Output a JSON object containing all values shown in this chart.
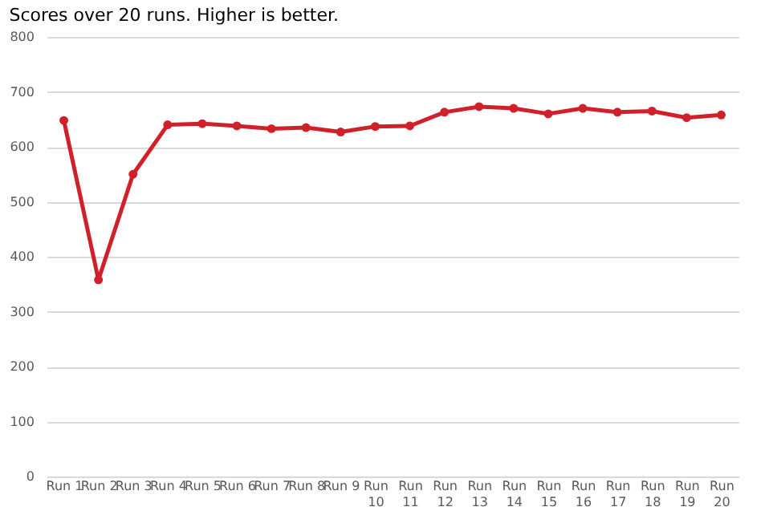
{
  "chart_data": {
    "type": "line",
    "subtitle": "Scores over 20 runs. Higher is better.",
    "categories": [
      "Run 1",
      "Run 2",
      "Run 3",
      "Run 4",
      "Run 5",
      "Run 6",
      "Run 7",
      "Run 8",
      "Run 9",
      "Run 10",
      "Run 11",
      "Run 12",
      "Run 13",
      "Run 14",
      "Run 15",
      "Run 16",
      "Run 17",
      "Run 18",
      "Run 19",
      "Run 20"
    ],
    "series": [
      {
        "color": "#d0202a",
        "values": [
          648,
          358,
          550,
          640,
          642,
          638,
          633,
          635,
          627,
          637,
          638,
          663,
          673,
          670,
          660,
          670,
          663,
          665,
          653,
          658
        ]
      }
    ],
    "ylim": [
      0,
      800
    ],
    "yticks": [
      0,
      100,
      200,
      300,
      400,
      500,
      600,
      700,
      800
    ],
    "grid": "y",
    "marker": "circle",
    "line_style": "solid"
  }
}
